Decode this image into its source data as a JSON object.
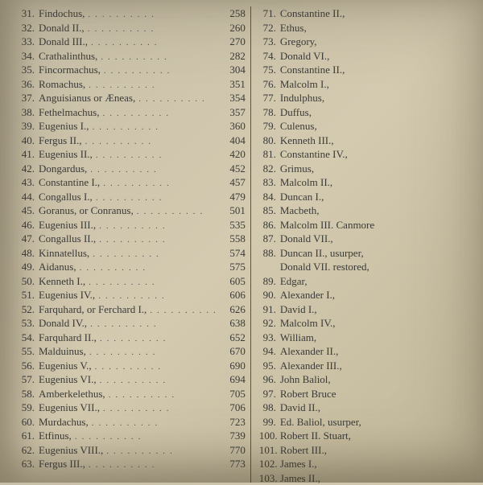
{
  "page": {
    "background_color": "#cbc2a9",
    "text_color": "#3a3a38",
    "font_family": "Times New Roman",
    "font_size_pt": 10,
    "divider_color": "#555555"
  },
  "left_column": [
    {
      "num": "31.",
      "name": "Findochus,",
      "year": "258"
    },
    {
      "num": "32.",
      "name": "Donald II.,",
      "year": "260"
    },
    {
      "num": "33.",
      "name": "Donald III.,",
      "year": "270"
    },
    {
      "num": "34.",
      "name": "Crathalinthus,",
      "year": "282"
    },
    {
      "num": "35.",
      "name": "Fincormachus,",
      "year": "304"
    },
    {
      "num": "36.",
      "name": "Romachus,",
      "year": "351"
    },
    {
      "num": "37.",
      "name": "Anguisianus or Æneas,",
      "year": "354"
    },
    {
      "num": "38.",
      "name": "Fethelmachus,",
      "year": "357"
    },
    {
      "num": "39.",
      "name": "Eugenius I.,",
      "year": "360"
    },
    {
      "num": "40.",
      "name": "Fergus II.,",
      "year": "404"
    },
    {
      "num": "41.",
      "name": "Eugenius II.,",
      "year": "420"
    },
    {
      "num": "42.",
      "name": "Dongardus,",
      "year": "452"
    },
    {
      "num": "43.",
      "name": "Constantine I.,",
      "year": "457"
    },
    {
      "num": "44.",
      "name": "Congallus I.,",
      "year": "479"
    },
    {
      "num": "45.",
      "name": "Goranus, or Conranus,",
      "year": "501"
    },
    {
      "num": "46.",
      "name": "Eugenius III.,",
      "year": "535"
    },
    {
      "num": "47.",
      "name": "Congallus II.,",
      "year": "558"
    },
    {
      "num": "48.",
      "name": "Kinnatellus,",
      "year": "574"
    },
    {
      "num": "49.",
      "name": "Aidanus,",
      "year": "575"
    },
    {
      "num": "50.",
      "name": "Kenneth I.,",
      "year": "605"
    },
    {
      "num": "51.",
      "name": "Eugenius IV.,",
      "year": "606"
    },
    {
      "num": "52.",
      "name": "Farquhard, or Ferchard I.,",
      "year": "626"
    },
    {
      "num": "53.",
      "name": "Donald IV.,",
      "year": "638"
    },
    {
      "num": "54.",
      "name": "Farquhard II.,",
      "year": "652"
    },
    {
      "num": "55.",
      "name": "Malduinus,",
      "year": "670"
    },
    {
      "num": "56.",
      "name": "Eugenius V.,",
      "year": "690"
    },
    {
      "num": "57.",
      "name": "Eugenius VI.,",
      "year": "694"
    },
    {
      "num": "58.",
      "name": "Amberkelethus,",
      "year": "705"
    },
    {
      "num": "59.",
      "name": "Eugenius VII.,",
      "year": "706"
    },
    {
      "num": "60.",
      "name": "Murdachus,",
      "year": "723"
    },
    {
      "num": "61.",
      "name": "Etfinus,",
      "year": "739"
    },
    {
      "num": "62.",
      "name": "Eugenius VIII.,",
      "year": "770"
    },
    {
      "num": "63.",
      "name": "Fergus III.,",
      "year": "773"
    }
  ],
  "right_column": [
    {
      "num": "71.",
      "name": "Constantine II.,",
      "year": ""
    },
    {
      "num": "72.",
      "name": "Ethus,",
      "year": ""
    },
    {
      "num": "73.",
      "name": "Gregory,",
      "year": ""
    },
    {
      "num": "74.",
      "name": "Donald VI.,",
      "year": ""
    },
    {
      "num": "75.",
      "name": "Constantine II.,",
      "year": ""
    },
    {
      "num": "76.",
      "name": "Malcolm I.,",
      "year": ""
    },
    {
      "num": "77.",
      "name": "Indulphus,",
      "year": ""
    },
    {
      "num": "78.",
      "name": "Duffus,",
      "year": ""
    },
    {
      "num": "79.",
      "name": "Culenus,",
      "year": ""
    },
    {
      "num": "80.",
      "name": "Kenneth III.,",
      "year": ""
    },
    {
      "num": "81.",
      "name": "Constantine IV.,",
      "year": ""
    },
    {
      "num": "82.",
      "name": "Grimus,",
      "year": ""
    },
    {
      "num": "83.",
      "name": "Malcolm II.,",
      "year": ""
    },
    {
      "num": "84.",
      "name": "Duncan I.,",
      "year": ""
    },
    {
      "num": "85.",
      "name": "Macbeth,",
      "year": ""
    },
    {
      "num": "86.",
      "name": "Malcolm III. Canmore",
      "year": ""
    },
    {
      "num": "87.",
      "name": "Donald VII.,",
      "year": ""
    },
    {
      "num": "88.",
      "name": "Duncan II., usurper,",
      "year": ""
    },
    {
      "num": "",
      "name": "Donald VII. restored,",
      "year": ""
    },
    {
      "num": "89.",
      "name": "Edgar,",
      "year": ""
    },
    {
      "num": "90.",
      "name": "Alexander I.,",
      "year": ""
    },
    {
      "num": "91.",
      "name": "David I.,",
      "year": ""
    },
    {
      "num": "92.",
      "name": "Malcolm IV.,",
      "year": ""
    },
    {
      "num": "93.",
      "name": "William,",
      "year": ""
    },
    {
      "num": "94.",
      "name": "Alexander II.,",
      "year": ""
    },
    {
      "num": "95.",
      "name": "Alexander III.,",
      "year": ""
    },
    {
      "num": "96.",
      "name": "John Baliol,",
      "year": ""
    },
    {
      "num": "97.",
      "name": "Robert Bruce",
      "year": ""
    },
    {
      "num": "98.",
      "name": "David II.,",
      "year": ""
    },
    {
      "num": "99.",
      "name": "Ed. Baliol, usurper,",
      "year": ""
    },
    {
      "num": "100.",
      "name": "Robert II. Stuart,",
      "year": ""
    },
    {
      "num": "101.",
      "name": "Robert III.,",
      "year": ""
    },
    {
      "num": "102.",
      "name": "James I.,",
      "year": ""
    },
    {
      "num": "103.",
      "name": "James II.,",
      "year": ""
    }
  ]
}
